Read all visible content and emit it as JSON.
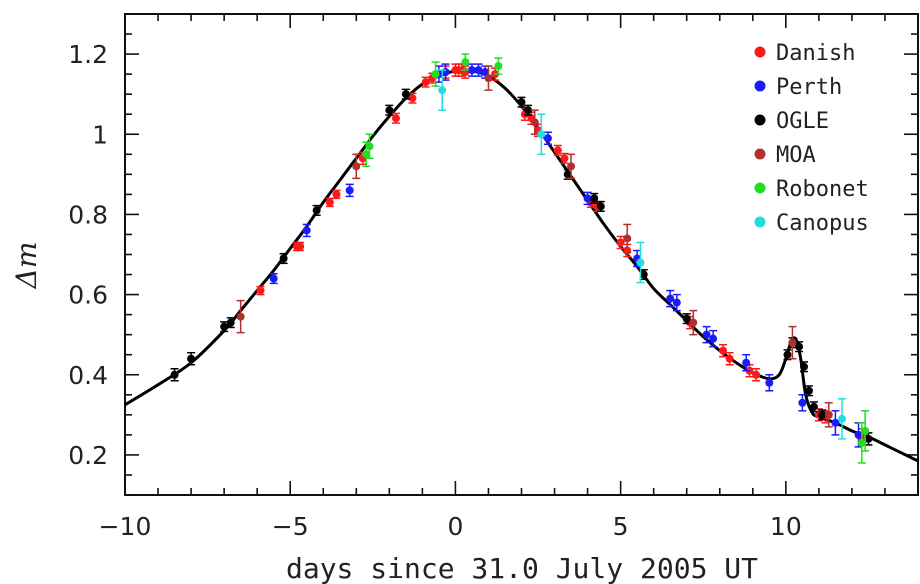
{
  "chart_data": {
    "type": "scatter",
    "xlabel": "days since 31.0 July 2005 UT",
    "ylabel": "Δm",
    "xlim": [
      -10,
      14
    ],
    "ylim": [
      0.1,
      1.3
    ],
    "xticks": [
      -10,
      -5,
      0,
      5,
      10
    ],
    "xtick_labels": [
      "−10",
      "−5",
      "0",
      "5",
      "10"
    ],
    "yticks": [
      0.2,
      0.4,
      0.6,
      0.8,
      1.0,
      1.2
    ],
    "ytick_labels": [
      "0.2",
      "0.4",
      "0.6",
      "0.8",
      "1",
      "1.2"
    ],
    "legend_position": "top-right",
    "model_curve": {
      "x": [
        -10,
        -9,
        -8,
        -7,
        -6.5,
        -6,
        -5.5,
        -5,
        -4.5,
        -4,
        -3.5,
        -3,
        -2.5,
        -2,
        -1.5,
        -1,
        -0.5,
        0,
        0.5,
        1,
        1.5,
        2,
        2.5,
        3,
        3.5,
        4,
        4.5,
        5,
        5.5,
        6,
        6.5,
        7,
        7.5,
        8,
        8.5,
        9,
        9.5,
        9.8,
        10.0,
        10.15,
        10.3,
        10.45,
        10.6,
        10.8,
        11,
        11.5,
        12,
        12.5,
        13,
        13.5,
        14
      ],
      "y": [
        0.325,
        0.375,
        0.43,
        0.51,
        0.56,
        0.61,
        0.66,
        0.715,
        0.77,
        0.83,
        0.885,
        0.94,
        0.995,
        1.045,
        1.09,
        1.125,
        1.145,
        1.158,
        1.158,
        1.145,
        1.115,
        1.07,
        1.015,
        0.955,
        0.895,
        0.835,
        0.775,
        0.72,
        0.67,
        0.615,
        0.575,
        0.535,
        0.495,
        0.46,
        0.43,
        0.405,
        0.39,
        0.4,
        0.44,
        0.48,
        0.49,
        0.44,
        0.35,
        0.305,
        0.295,
        0.28,
        0.26,
        0.245,
        0.225,
        0.205,
        0.185
      ]
    },
    "series": [
      {
        "name": "Danish",
        "color": "#ff1a1a",
        "x": [
          -5.9,
          -4.8,
          -4.7,
          -3.8,
          -3.6,
          -2.8,
          -1.8,
          -1.3,
          -0.9,
          -0.7,
          -0.3,
          0.0,
          0.1,
          0.2,
          0.3,
          1.2,
          2.1,
          2.3,
          2.5,
          3.1,
          3.3,
          4.1,
          4.3,
          5.0,
          5.2,
          7.1,
          8.1,
          8.3,
          8.9,
          9.1,
          11.0,
          11.2,
          12.3
        ],
        "y": [
          0.61,
          0.72,
          0.72,
          0.83,
          0.85,
          0.94,
          1.04,
          1.09,
          1.13,
          1.14,
          1.155,
          1.16,
          1.16,
          1.16,
          1.155,
          1.15,
          1.05,
          1.04,
          1.01,
          0.96,
          0.94,
          0.83,
          0.82,
          0.73,
          0.71,
          0.53,
          0.46,
          0.44,
          0.41,
          0.4,
          0.3,
          0.295,
          0.245
        ],
        "err": [
          0.01,
          0.01,
          0.01,
          0.01,
          0.01,
          0.015,
          0.012,
          0.012,
          0.012,
          0.012,
          0.015,
          0.015,
          0.015,
          0.015,
          0.015,
          0.015,
          0.015,
          0.015,
          0.015,
          0.012,
          0.012,
          0.012,
          0.012,
          0.015,
          0.015,
          0.015,
          0.015,
          0.015,
          0.015,
          0.015,
          0.015,
          0.015,
          0.02
        ]
      },
      {
        "name": "Perth",
        "color": "#1a1aff",
        "x": [
          -5.5,
          -4.5,
          -3.2,
          -0.5,
          -0.3,
          0.5,
          0.7,
          0.9,
          2.8,
          4.0,
          5.5,
          6.5,
          6.7,
          7.6,
          7.8,
          8.8,
          9.5,
          10.5,
          11.5,
          12.2
        ],
        "y": [
          0.64,
          0.76,
          0.86,
          1.15,
          1.155,
          1.16,
          1.16,
          1.155,
          0.99,
          0.84,
          0.69,
          0.59,
          0.58,
          0.5,
          0.49,
          0.43,
          0.38,
          0.33,
          0.28,
          0.25
        ],
        "err": [
          0.012,
          0.015,
          0.015,
          0.02,
          0.02,
          0.015,
          0.015,
          0.015,
          0.015,
          0.015,
          0.02,
          0.02,
          0.02,
          0.02,
          0.02,
          0.02,
          0.02,
          0.02,
          0.03,
          0.03
        ]
      },
      {
        "name": "OGLE",
        "color": "#000000",
        "x": [
          -8.5,
          -8.0,
          -7.0,
          -6.8,
          -5.2,
          -4.2,
          -2.0,
          -1.5,
          2.0,
          2.2,
          3.4,
          4.2,
          4.4,
          5.7,
          7.0,
          10.05,
          10.2,
          10.4,
          10.55,
          10.7,
          10.85,
          11.1,
          12.5
        ],
        "y": [
          0.4,
          0.44,
          0.52,
          0.53,
          0.69,
          0.81,
          1.06,
          1.1,
          1.08,
          1.06,
          0.9,
          0.84,
          0.82,
          0.65,
          0.54,
          0.45,
          0.48,
          0.47,
          0.42,
          0.36,
          0.32,
          0.3,
          0.24
        ],
        "err": [
          0.015,
          0.015,
          0.012,
          0.012,
          0.012,
          0.012,
          0.012,
          0.012,
          0.012,
          0.012,
          0.012,
          0.012,
          0.012,
          0.012,
          0.012,
          0.012,
          0.012,
          0.012,
          0.012,
          0.012,
          0.012,
          0.012,
          0.015
        ]
      },
      {
        "name": "MOA",
        "color": "#b03030",
        "x": [
          -6.5,
          -3.0,
          1.0,
          2.4,
          3.5,
          5.2,
          7.2,
          10.2,
          11.3
        ],
        "y": [
          0.545,
          0.92,
          1.14,
          1.03,
          0.92,
          0.74,
          0.53,
          0.48,
          0.3
        ],
        "err": [
          0.04,
          0.03,
          0.03,
          0.03,
          0.03,
          0.035,
          0.03,
          0.04,
          0.03
        ]
      },
      {
        "name": "Robonet",
        "color": "#22dd22",
        "x": [
          -2.7,
          -2.6,
          -0.6,
          0.3,
          1.3,
          12.3,
          12.4
        ],
        "y": [
          0.95,
          0.97,
          1.15,
          1.18,
          1.17,
          0.23,
          0.26
        ],
        "err": [
          0.03,
          0.03,
          0.03,
          0.02,
          0.02,
          0.05,
          0.05
        ]
      },
      {
        "name": "Canopus",
        "color": "#22dddd",
        "x": [
          -0.4,
          2.6,
          5.6,
          11.7
        ],
        "y": [
          1.11,
          1.0,
          0.68,
          0.29
        ],
        "err": [
          0.05,
          0.05,
          0.05,
          0.05
        ]
      }
    ]
  }
}
